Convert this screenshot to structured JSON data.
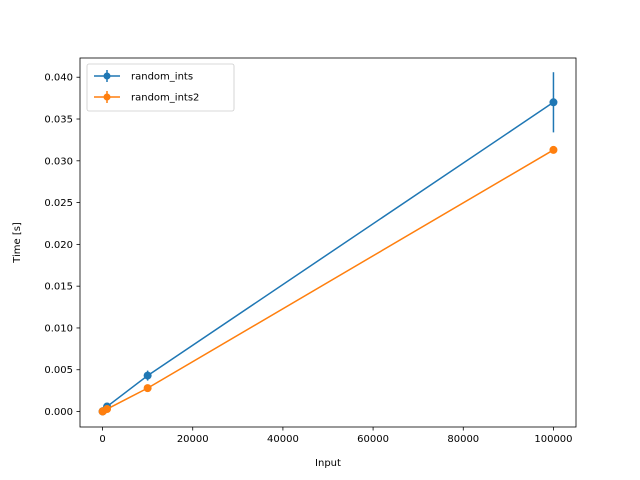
{
  "chart_data": {
    "type": "line",
    "xlabel": "Input",
    "ylabel": "Time [s]",
    "xlim": [
      -5000,
      105000
    ],
    "ylim": [
      -0.00185,
      0.0423
    ],
    "xticks": [
      0,
      20000,
      40000,
      60000,
      80000,
      100000
    ],
    "xtick_labels": [
      "0",
      "20000",
      "40000",
      "60000",
      "80000",
      "100000"
    ],
    "yticks": [
      0.0,
      0.005,
      0.01,
      0.015,
      0.02,
      0.025,
      0.03,
      0.035,
      0.04
    ],
    "ytick_labels": [
      "0.000",
      "0.005",
      "0.010",
      "0.015",
      "0.020",
      "0.025",
      "0.030",
      "0.035",
      "0.040"
    ],
    "grid": false,
    "legend_position": "top-left",
    "series": [
      {
        "name": "random_ints",
        "color": "#1f77b4",
        "marker": "circle",
        "x": [
          10,
          100,
          1000,
          10000,
          100000
        ],
        "y": [
          1e-05,
          5e-05,
          0.0006,
          0.0043,
          0.037
        ],
        "yerr": [
          1e-05,
          1e-05,
          0.0001,
          0.0006,
          0.0036
        ]
      },
      {
        "name": "random_ints2",
        "color": "#ff7f0e",
        "marker": "circle",
        "x": [
          10,
          100,
          1000,
          10000,
          100000
        ],
        "y": [
          1e-05,
          4e-05,
          0.0003,
          0.0028,
          0.0313
        ],
        "yerr": [
          1e-05,
          1e-05,
          3e-05,
          0.0002,
          0.0004
        ]
      }
    ]
  }
}
